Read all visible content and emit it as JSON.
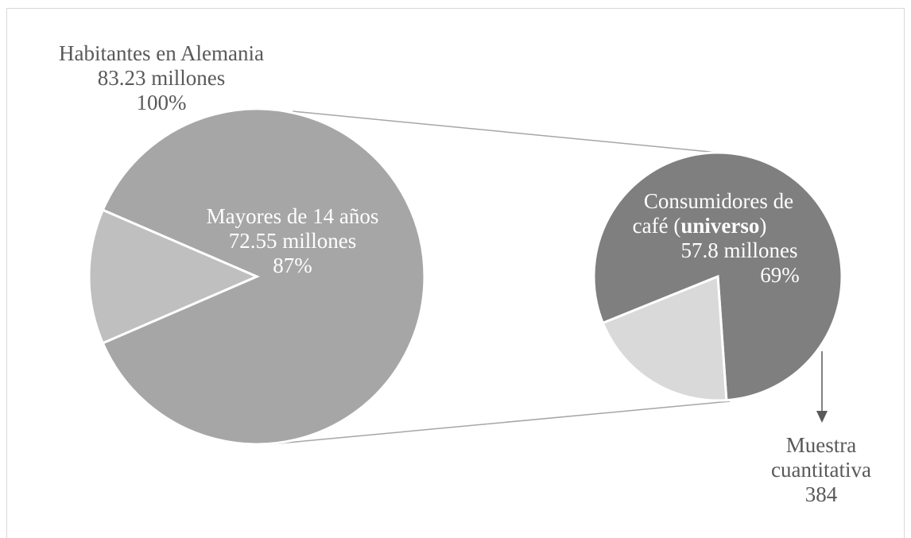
{
  "chart_data": {
    "type": "pie",
    "title": "",
    "pies": [
      {
        "name": "Habitantes en Alemania",
        "total_label": [
          "Habitantes en Alemania",
          "83.23 millones",
          "100%"
        ],
        "slices": [
          {
            "label": [
              "Mayores de 14 años",
              "72.55 millones",
              "87%"
            ],
            "value": 87,
            "color": "#a6a6a6"
          },
          {
            "label": [],
            "value": 13,
            "color": "#bfbfbf"
          }
        ]
      },
      {
        "name": "Mayores de 14 años",
        "slices": [
          {
            "label_parts": [
              [
                {
                  "t": "Consumidores de",
                  "b": false
                }
              ],
              [
                {
                  "t": "café (",
                  "b": false
                },
                {
                  "t": "universo",
                  "b": true
                },
                {
                  "t": ")",
                  "b": false
                }
              ],
              [
                {
                  "t": "57.8 millones",
                  "b": false
                }
              ],
              [
                {
                  "t": "69%",
                  "b": false
                }
              ]
            ],
            "value": 80,
            "color": "#7f7f7f"
          },
          {
            "label": [],
            "value": 20,
            "color": "#d9d9d9"
          }
        ]
      }
    ],
    "annotation": {
      "lines": [
        "Muestra",
        "cuantitativa",
        "384"
      ]
    }
  }
}
